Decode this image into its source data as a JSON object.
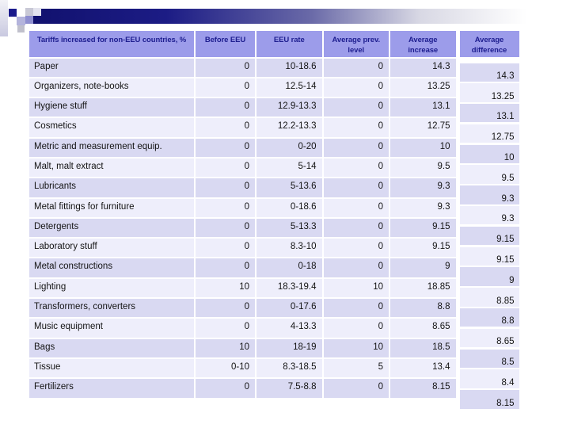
{
  "slide": {
    "type": "presentation-slide-with-table",
    "colors": {
      "header_bg": "#9c9cea",
      "header_text": "#1e1e8f",
      "row_odd": "#d9d9f2",
      "row_even": "#eeeefb",
      "body_text": "#141414",
      "bar_navy": "#1a1a8c"
    },
    "table": {
      "headers": [
        "Tariffs increased for non-EEU countries, %",
        "Before EEU",
        "EEU rate",
        "Average prev. level",
        "Average increase",
        "Average difference"
      ],
      "rows": [
        {
          "label": "Paper",
          "before_eeu": "0",
          "eeu_rate": "10-18.6",
          "avg_prev_level": "0",
          "avg_increase": "14.3",
          "avg_difference": "14.3"
        },
        {
          "label": "Organizers, note-books",
          "before_eeu": "0",
          "eeu_rate": "12.5-14",
          "avg_prev_level": "0",
          "avg_increase": "13.25",
          "avg_difference": "13.25"
        },
        {
          "label": "Hygiene stuff",
          "before_eeu": "0",
          "eeu_rate": "12.9-13.3",
          "avg_prev_level": "0",
          "avg_increase": "13.1",
          "avg_difference": "13.1"
        },
        {
          "label": "Cosmetics",
          "before_eeu": "0",
          "eeu_rate": "12.2-13.3",
          "avg_prev_level": "0",
          "avg_increase": "12.75",
          "avg_difference": "12.75"
        },
        {
          "label": "Metric and measurement equip.",
          "before_eeu": "0",
          "eeu_rate": "0-20",
          "avg_prev_level": "0",
          "avg_increase": "10",
          "avg_difference": "10"
        },
        {
          "label": "Malt, malt extract",
          "before_eeu": "0",
          "eeu_rate": "5-14",
          "avg_prev_level": "0",
          "avg_increase": "9.5",
          "avg_difference": "9.5"
        },
        {
          "label": "Lubricants",
          "before_eeu": "0",
          "eeu_rate": "5-13.6",
          "avg_prev_level": "0",
          "avg_increase": "9.3",
          "avg_difference": "9.3"
        },
        {
          "label": "Metal fittings for furniture",
          "before_eeu": "0",
          "eeu_rate": "0-18.6",
          "avg_prev_level": "0",
          "avg_increase": "9.3",
          "avg_difference": "9.3"
        },
        {
          "label": "Detergents",
          "before_eeu": "0",
          "eeu_rate": "5-13.3",
          "avg_prev_level": "0",
          "avg_increase": "9.15",
          "avg_difference": "9.15"
        },
        {
          "label": "Laboratory stuff",
          "before_eeu": "0",
          "eeu_rate": "8.3-10",
          "avg_prev_level": "0",
          "avg_increase": "9.15",
          "avg_difference": "9.15"
        },
        {
          "label": "Metal constructions",
          "before_eeu": "0",
          "eeu_rate": "0-18",
          "avg_prev_level": "0",
          "avg_increase": "9",
          "avg_difference": "9"
        },
        {
          "label": "Lighting",
          "before_eeu": "10",
          "eeu_rate": "18.3-19.4",
          "avg_prev_level": "10",
          "avg_increase": "18.85",
          "avg_difference": "8.85"
        },
        {
          "label": "Transformers, converters",
          "before_eeu": "0",
          "eeu_rate": "0-17.6",
          "avg_prev_level": "0",
          "avg_increase": "8.8",
          "avg_difference": "8.8"
        },
        {
          "label": "Music equipment",
          "before_eeu": "0",
          "eeu_rate": "4-13.3",
          "avg_prev_level": "0",
          "avg_increase": "8.65",
          "avg_difference": "8.65"
        },
        {
          "label": "Bags",
          "before_eeu": "10",
          "eeu_rate": "18-19",
          "avg_prev_level": "10",
          "avg_increase": "18.5",
          "avg_difference": "8.5"
        },
        {
          "label": "Tissue",
          "before_eeu": "0-10",
          "eeu_rate": "8.3-18.5",
          "avg_prev_level": "5",
          "avg_increase": "13.4",
          "avg_difference": "8.4"
        },
        {
          "label": "Fertilizers",
          "before_eeu": "0",
          "eeu_rate": "7.5-8.8",
          "avg_prev_level": "0",
          "avg_increase": "8.15",
          "avg_difference": "8.15"
        }
      ]
    }
  }
}
